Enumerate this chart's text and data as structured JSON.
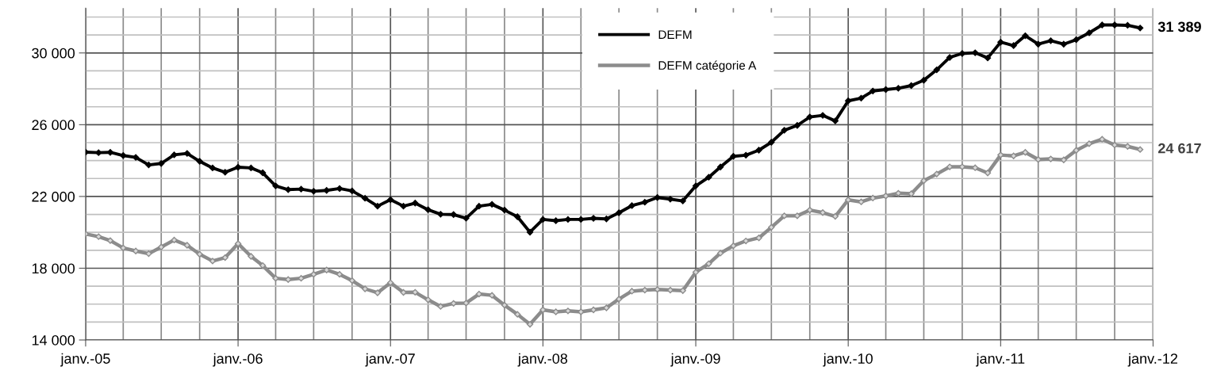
{
  "chart_data": {
    "type": "line",
    "x": [
      "2005-01",
      "2005-02",
      "2005-03",
      "2005-04",
      "2005-05",
      "2005-06",
      "2005-07",
      "2005-08",
      "2005-09",
      "2005-10",
      "2005-11",
      "2005-12",
      "2006-01",
      "2006-02",
      "2006-03",
      "2006-04",
      "2006-05",
      "2006-06",
      "2006-07",
      "2006-08",
      "2006-09",
      "2006-10",
      "2006-11",
      "2006-12",
      "2007-01",
      "2007-02",
      "2007-03",
      "2007-04",
      "2007-05",
      "2007-06",
      "2007-07",
      "2007-08",
      "2007-09",
      "2007-10",
      "2007-11",
      "2007-12",
      "2008-01",
      "2008-02",
      "2008-03",
      "2008-04",
      "2008-05",
      "2008-06",
      "2008-07",
      "2008-08",
      "2008-09",
      "2008-10",
      "2008-11",
      "2008-12",
      "2009-01",
      "2009-02",
      "2009-03",
      "2009-04",
      "2009-05",
      "2009-06",
      "2009-07",
      "2009-08",
      "2009-09",
      "2009-10",
      "2009-11",
      "2009-12",
      "2010-01",
      "2010-02",
      "2010-03",
      "2010-04",
      "2010-05",
      "2010-06",
      "2010-07",
      "2010-08",
      "2010-09",
      "2010-10",
      "2010-11",
      "2010-12",
      "2011-01",
      "2011-02",
      "2011-03",
      "2011-04",
      "2011-05",
      "2011-06",
      "2011-07",
      "2011-08",
      "2011-09",
      "2011-10",
      "2011-11",
      "2011-12"
    ],
    "series": [
      {
        "name": "DEFM",
        "color": "#000000",
        "values": [
          24470,
          24440,
          24460,
          24280,
          24180,
          23760,
          23840,
          24320,
          24400,
          23960,
          23590,
          23350,
          23630,
          23590,
          23320,
          22590,
          22380,
          22410,
          22290,
          22340,
          22440,
          22310,
          21900,
          21460,
          21820,
          21460,
          21630,
          21260,
          21010,
          20990,
          20790,
          21460,
          21560,
          21240,
          20870,
          20010,
          20720,
          20650,
          20720,
          20720,
          20780,
          20750,
          21090,
          21490,
          21680,
          21940,
          21850,
          21750,
          22590,
          23070,
          23640,
          24240,
          24300,
          24580,
          25020,
          25690,
          25960,
          26430,
          26520,
          26210,
          27330,
          27480,
          27880,
          27960,
          28030,
          28180,
          28480,
          29060,
          29750,
          29970,
          30010,
          29720,
          30600,
          30410,
          30960,
          30490,
          30680,
          30490,
          30740,
          31120,
          31560,
          31560,
          31540,
          31389
        ]
      },
      {
        "name": "DEFM catégorie A",
        "color": "#8c8c8c",
        "values": [
          19910,
          19760,
          19540,
          19130,
          18960,
          18810,
          19180,
          19570,
          19280,
          18780,
          18400,
          18590,
          19370,
          18660,
          18150,
          17440,
          17370,
          17440,
          17660,
          17900,
          17660,
          17310,
          16850,
          16630,
          17190,
          16650,
          16660,
          16240,
          15870,
          16040,
          16060,
          16560,
          16490,
          15940,
          15430,
          14870,
          15680,
          15570,
          15620,
          15570,
          15680,
          15790,
          16280,
          16720,
          16780,
          16820,
          16780,
          16750,
          17780,
          18250,
          18840,
          19250,
          19520,
          19690,
          20280,
          20920,
          20920,
          21240,
          21100,
          20890,
          21810,
          21700,
          21910,
          22030,
          22180,
          22150,
          22880,
          23250,
          23650,
          23650,
          23600,
          23310,
          24310,
          24260,
          24460,
          24060,
          24090,
          24040,
          24570,
          24940,
          25190,
          24870,
          24790,
          24617
        ]
      }
    ],
    "xlim": [
      "2005-01",
      "2012-01"
    ],
    "xticks": [
      {
        "value": "2005-01",
        "label": "janv.-05"
      },
      {
        "value": "2006-01",
        "label": "janv.-06"
      },
      {
        "value": "2007-01",
        "label": "janv.-07"
      },
      {
        "value": "2008-01",
        "label": "janv.-08"
      },
      {
        "value": "2009-01",
        "label": "janv.-09"
      },
      {
        "value": "2010-01",
        "label": "janv.-10"
      },
      {
        "value": "2011-01",
        "label": "janv.-11"
      },
      {
        "value": "2012-01",
        "label": "janv.-12"
      }
    ],
    "ylim": [
      14000,
      32500
    ],
    "yticks": [
      {
        "value": 14000,
        "label": "14 000"
      },
      {
        "value": 18000,
        "label": "18 000"
      },
      {
        "value": 22000,
        "label": "22 000"
      },
      {
        "value": 26000,
        "label": "26 000"
      },
      {
        "value": 30000,
        "label": "30 000"
      }
    ],
    "annotations": [
      {
        "text": "31 389",
        "x": "2011-12",
        "y": 31389
      },
      {
        "text": "24 617",
        "x": "2011-12",
        "y": 24617
      }
    ],
    "grid": true,
    "legend": "top",
    "marker": "diamond",
    "line_style": "solid"
  }
}
